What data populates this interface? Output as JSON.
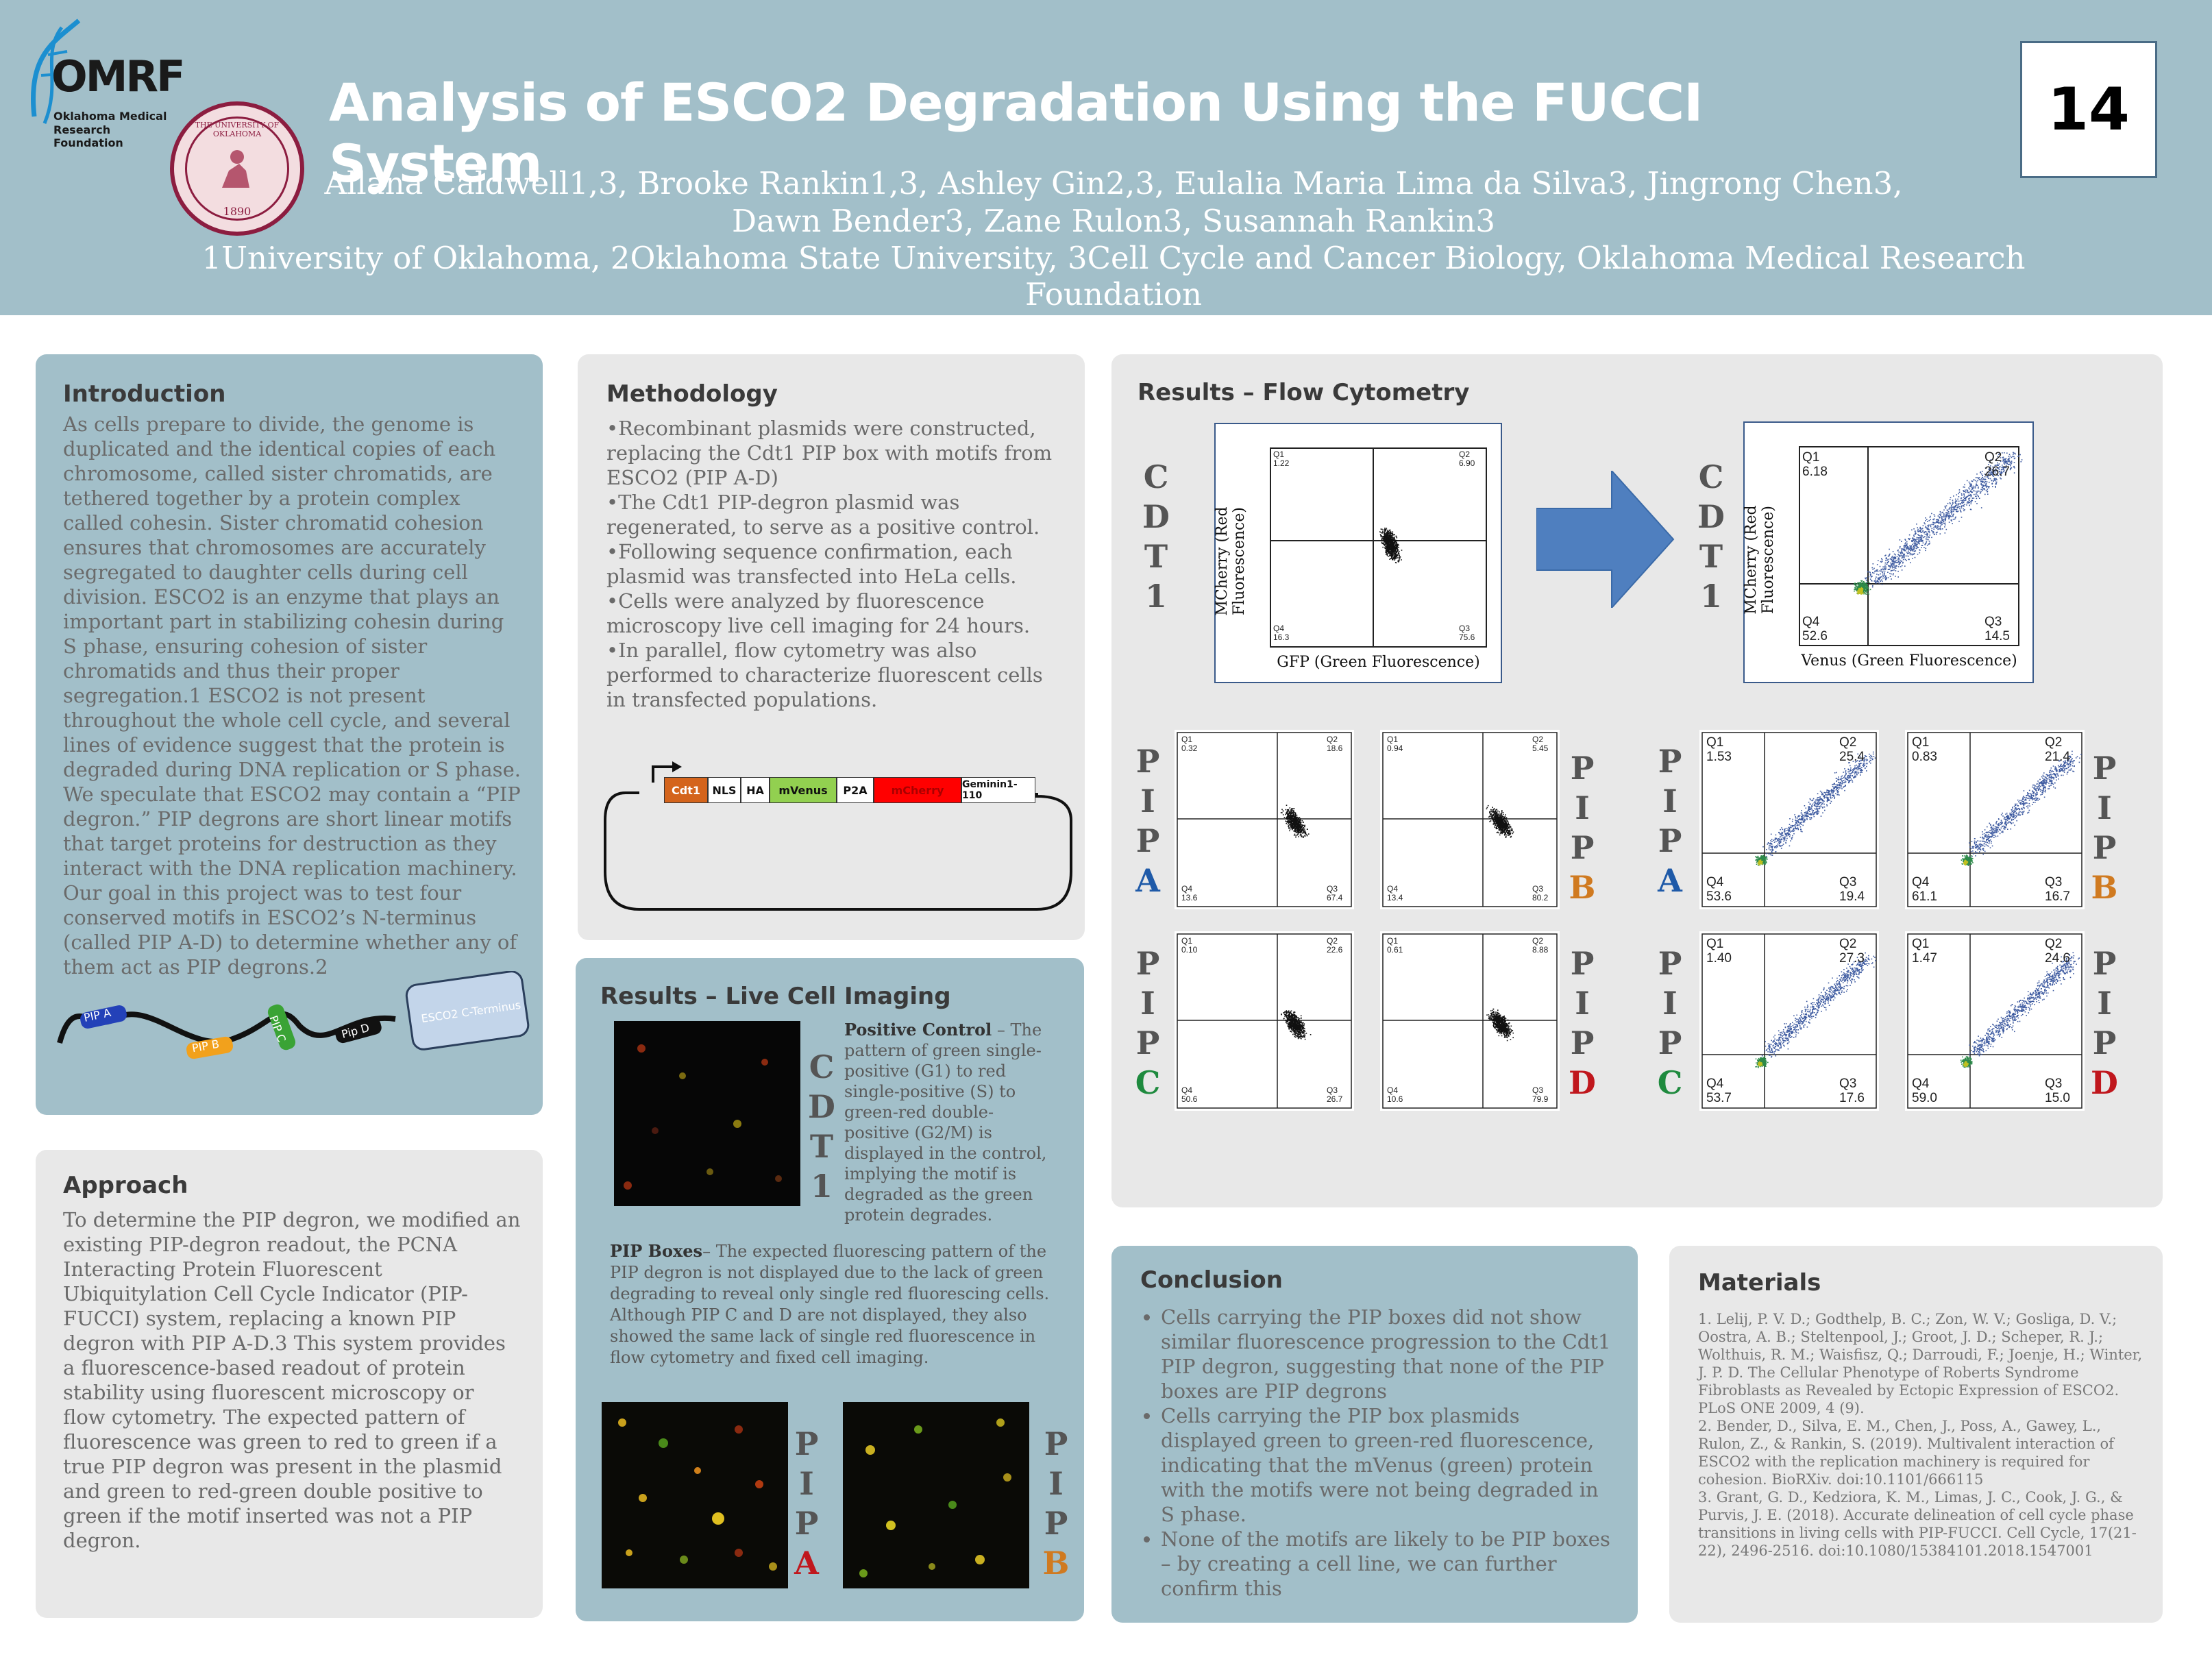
{
  "header": {
    "logo_text": "OMRF",
    "logo_sub1": "Oklahoma Medical",
    "logo_sub2": "Research Foundation",
    "seal_text": "THE UNIVERSITY OF OKLAHOMA",
    "seal_year": "1890",
    "title": "Analysis of ESCO2 Degradation Using the FUCCI System",
    "authors_line1": "Allana Caldwell1,3, Brooke Rankin1,3, Ashley Gin2,3, Eulalia Maria Lima da Silva3, Jingrong Chen3,",
    "authors_line2": "Dawn Bender3, Zane Rulon3, Susannah Rankin3",
    "affiliations": "1University of Oklahoma, 2Oklahoma State University, 3Cell Cycle and Cancer Biology, Oklahoma Medical Research Foundation",
    "poster_number": "14"
  },
  "introduction": {
    "heading": "Introduction",
    "body": "As cells prepare to divide, the genome is duplicated and the identical copies of each chromosome, called sister chromatids, are tethered together by a protein complex called cohesin. Sister chromatid cohesion ensures that chromosomes are accurately segregated to daughter cells during cell division. ESCO2 is an enzyme that plays an important part in stabilizing cohesin during S phase, ensuring cohesion of sister chromatids and thus their proper segregation.1 ESCO2 is not present throughout the whole cell cycle, and several lines of evidence suggest that the protein is degraded during DNA replication or S phase. We speculate that ESCO2 may contain a “PIP degron.” PIP degrons are short linear motifs that target proteins for destruction as they interact with the DNA replication machinery. Our goal in this project was to test four conserved motifs in ESCO2’s N-terminus (called PIP A-D) to determine whether any of them act as PIP degrons.2",
    "diagram": {
      "pip_a": "PIP A",
      "pip_b": "PIP B",
      "pip_c": "PIP C",
      "pip_d": "Pip D",
      "cterm": "ESCO2 C-Terminus"
    }
  },
  "approach": {
    "heading": "Approach",
    "body": "To determine the PIP degron, we modified an existing PIP-degron readout, the PCNA Interacting Protein Fluorescent Ubiquitylation Cell Cycle Indicator (PIP-FUCCI) system, replacing a known PIP degron with PIP A-D.3 This system provides a fluorescence-based readout of protein stability using fluorescent microscopy or flow cytometry. The expected pattern of fluorescence was green to red to green if a true PIP degron was present in the plasmid and green to red-green double positive to green if the motif inserted was not a PIP degron."
  },
  "methodology": {
    "heading": "Methodology",
    "bullets": [
      "•Recombinant plasmids were constructed, replacing the Cdt1 PIP box with motifs from ESCO2 (PIP A-D)",
      "•The Cdt1 PIP-degron plasmid was regenerated, to serve as a positive control.",
      "•Following sequence confirmation, each plasmid was transfected into HeLa cells.",
      "•Cells were analyzed by fluorescence microscopy live cell imaging for 24 hours.",
      "•In parallel, flow cytometry was also performed to characterize fluorescent cells in transfected populations."
    ],
    "plasmid": [
      "Cdt1",
      "NLS",
      "HA",
      "mVenus",
      "P2A",
      "mCherry",
      "Geminin1-110"
    ]
  },
  "live_imaging": {
    "heading": "Results – Live Cell Imaging",
    "cdt1_letters": [
      "C",
      "D",
      "T",
      "1"
    ],
    "positive_bold": "Positive Control",
    "positive_text": " – The pattern of green single-positive (G1) to red single-positive (S) to green-red double-positive (G2/M) is displayed in the control, implying the motif is degraded as the green protein degrades.",
    "pip_bold": "PIP Boxes",
    "pip_text": "– The expected fluorescing pattern of the PIP degron is not displayed due to the lack of green degrading to reveal only single red fluorescing cells. Although PIP C and D are not displayed, they also showed the same lack of single red fluorescence in flow cytometry and fixed cell imaging.",
    "pip_letters": [
      "P",
      "I",
      "P"
    ],
    "label_a": "A",
    "label_b": "B"
  },
  "flow": {
    "heading": "Results – Flow Cytometry",
    "cdt1_letters": [
      "C",
      "D",
      "T",
      "1"
    ],
    "pip_letters": [
      "P",
      "I",
      "P"
    ],
    "labels": {
      "A": "A",
      "B": "B",
      "C": "C",
      "D": "D"
    },
    "big_left": {
      "ylabel": "MCherry (Red Fluorescence)",
      "xlabel": "GFP (Green Fluorescence)",
      "q1": "Q1\n1.22",
      "q2": "Q2\n6.90",
      "q3": "Q3\n75.6",
      "q4": "Q4\n16.3"
    },
    "big_right": {
      "ylabel": "MCherry (Red Fluorescence)",
      "xlabel": "Venus (Green Fluorescence)",
      "q1": "Q1\n6.18",
      "q2": "Q2\n26.7",
      "q3": "Q3\n14.5",
      "q4": "Q4\n52.6"
    },
    "small_plots": [
      {
        "q1": "Q1\n0.32",
        "q2": "Q2\n18.6",
        "q3": "Q3\n67.4",
        "q4": "Q4\n13.6"
      },
      {
        "q1": "Q1\n0.94",
        "q2": "Q2\n5.45",
        "q3": "Q3\n80.2",
        "q4": "Q4\n13.4"
      },
      {
        "q1": "Q1\n1.53",
        "q2": "Q2\n25.4",
        "q3": "Q3\n19.4",
        "q4": "Q4\n53.6"
      },
      {
        "q1": "Q1\n0.83",
        "q2": "Q2\n21.4",
        "q3": "Q3\n16.7",
        "q4": "Q4\n61.1"
      },
      {
        "q1": "Q1\n0.10",
        "q2": "Q2\n22.6",
        "q3": "Q3\n26.7",
        "q4": "Q4\n50.6"
      },
      {
        "q1": "Q1\n0.61",
        "q2": "Q2\n8.88",
        "q3": "Q3\n79.9",
        "q4": "Q4\n10.6"
      },
      {
        "q1": "Q1\n1.40",
        "q2": "Q2\n27.3",
        "q3": "Q3\n17.6",
        "q4": "Q4\n53.7"
      },
      {
        "q1": "Q1\n1.47",
        "q2": "Q2\n24.6",
        "q3": "Q3\n15.0",
        "q4": "Q4\n59.0"
      }
    ]
  },
  "conclusion": {
    "heading": "Conclusion",
    "bullets": [
      "Cells carrying the PIP boxes did not show similar fluorescence progression to the Cdt1 PIP degron, suggesting that none of the PIP boxes are PIP degrons",
      "Cells carrying the PIP box plasmids displayed green to green-red fluorescence, indicating that the mVenus (green) protein with the motifs were not being degraded in S phase.",
      "None of the motifs are likely to be PIP boxes – by creating a cell line, we can further confirm this"
    ]
  },
  "materials": {
    "heading": "Materials",
    "refs": [
      "1. Lelij, P. V. D.; Godthelp, B. C.; Zon, W. V.; Gosliga, D. V.; Oostra, A. B.; Steltenpool, J.; Groot, J. D.; Scheper, R. J.; Wolthuis, R. M.; Waisfisz, Q.; Darroudi, F.; Joenje, H.; Winter, J. P. D. The Cellular Phenotype of Roberts Syndrome Fibroblasts as Revealed by Ectopic Expression of ESCO2. PLoS ONE 2009, 4 (9).",
      "2. Bender, D., Silva, E. M., Chen, J., Poss, A., Gawey, L., Rulon, Z., & Rankin, S. (2019). Multivalent interaction of ESCO2 with the replication machinery is required for cohesion. BioRXiv. doi:10.1101/666115",
      "3. Grant, G. D., Kedziora, K. M., Limas, J. C., Cook, J. G., & Purvis, J. E. (2018). Accurate delineation of cell cycle phase transitions in living cells with PIP-FUCCI. Cell Cycle, 17(21-22), 2496-2516. doi:10.1080/15384101.2018.1547001"
    ]
  },
  "colors": {
    "header_bg": "#a2bfc9",
    "panel_grey": "#e8e8e8",
    "arrow_blue": "#4f7fbf",
    "label_a": "#1f5aa8",
    "label_b": "#d07a20",
    "label_c": "#1e8a3e",
    "label_d": "#c0171d"
  }
}
